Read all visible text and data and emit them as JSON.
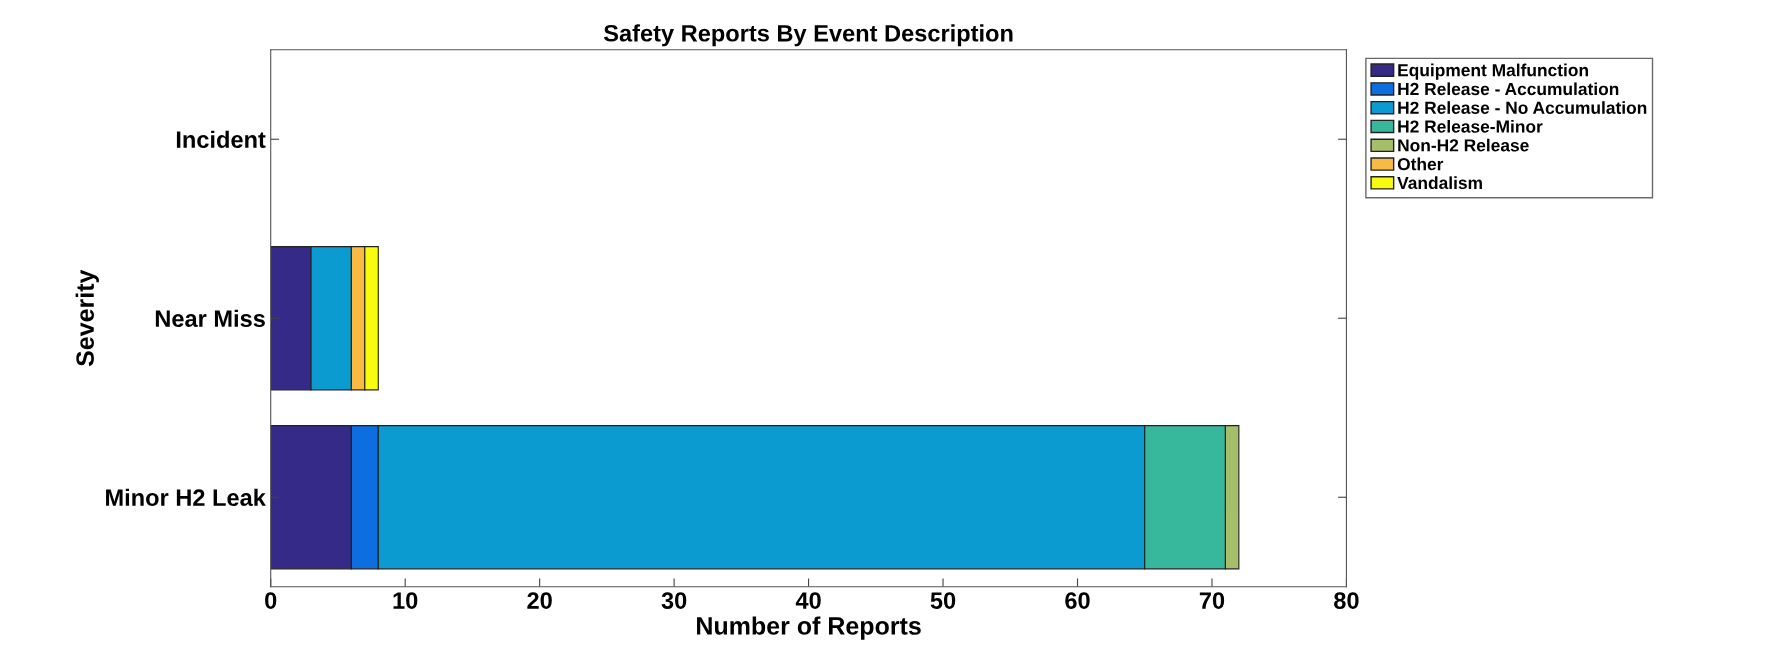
{
  "chart_data": {
    "type": "bar",
    "orientation": "horizontal",
    "stacked": true,
    "title": "Safety Reports By Event Description",
    "xlabel": "Number of Reports",
    "ylabel": "Severity",
    "categories": [
      "Incident",
      "Near Miss",
      "Minor H2 Leak"
    ],
    "series": [
      {
        "name": "Equipment Malfunction",
        "color": "#352a87",
        "values": [
          0,
          3,
          6
        ]
      },
      {
        "name": "H2 Release - Accumulation",
        "color": "#0d6ee0",
        "values": [
          0,
          0,
          2
        ]
      },
      {
        "name": "H2 Release - No Accumulation",
        "color": "#0b9bd0",
        "values": [
          0,
          3,
          57
        ]
      },
      {
        "name": "H2 Release-Minor",
        "color": "#37b89d",
        "values": [
          0,
          0,
          6
        ]
      },
      {
        "name": "Non-H2 Release",
        "color": "#a5be6a",
        "values": [
          0,
          0,
          1
        ]
      },
      {
        "name": "Other",
        "color": "#f8ba43",
        "values": [
          0,
          1,
          0
        ]
      },
      {
        "name": "Vandalism",
        "color": "#f9fb0e",
        "values": [
          0,
          1,
          0
        ]
      }
    ],
    "xlim": [
      0,
      80
    ],
    "xticks": [
      0,
      10,
      20,
      30,
      40,
      50,
      60,
      70,
      80
    ],
    "grid": false,
    "legend": "top right"
  }
}
